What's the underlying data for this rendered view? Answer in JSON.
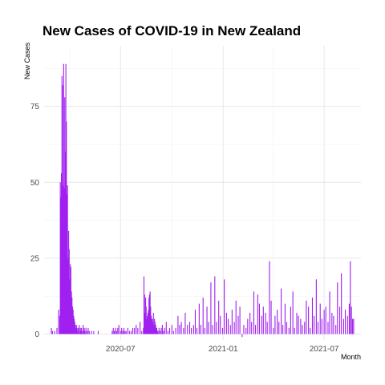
{
  "chart_data": {
    "type": "bar",
    "title": "New Cases of COVID-19 in New Zealand",
    "xlabel": "Month",
    "ylabel": "New Cases",
    "x_ticks": [
      "2020-07",
      "2021-01",
      "2021-07"
    ],
    "y_ticks": [
      0,
      25,
      50,
      75
    ],
    "xlim": [
      "2020-02-15",
      "2021-09-05"
    ],
    "ylim": [
      -2,
      95
    ],
    "grid": true,
    "bar_color": "#a020f0",
    "series": [
      {
        "x": [
          "2020-02-28",
          "2020-03-01",
          "2020-03-05",
          "2020-03-09",
          "2020-03-12",
          "2020-03-14",
          "2020-03-15",
          "2020-03-16",
          "2020-03-17",
          "2020-03-18",
          "2020-03-19",
          "2020-03-20",
          "2020-03-21",
          "2020-03-22",
          "2020-03-23",
          "2020-03-24",
          "2020-03-25",
          "2020-03-26",
          "2020-03-27",
          "2020-03-28",
          "2020-03-29",
          "2020-03-30",
          "2020-03-31",
          "2020-04-01",
          "2020-04-02",
          "2020-04-03",
          "2020-04-04",
          "2020-04-05",
          "2020-04-06",
          "2020-04-07",
          "2020-04-08",
          "2020-04-09",
          "2020-04-10",
          "2020-04-11",
          "2020-04-12",
          "2020-04-13",
          "2020-04-14",
          "2020-04-15",
          "2020-04-16",
          "2020-04-17",
          "2020-04-18",
          "2020-04-19",
          "2020-04-20",
          "2020-04-21",
          "2020-04-22",
          "2020-04-23",
          "2020-04-24",
          "2020-04-25",
          "2020-04-26",
          "2020-04-27",
          "2020-04-28",
          "2020-04-29",
          "2020-04-30",
          "2020-05-02",
          "2020-05-04",
          "2020-05-06",
          "2020-05-08",
          "2020-05-10",
          "2020-05-14",
          "2020-05-22",
          "2020-06-16",
          "2020-06-18",
          "2020-06-20",
          "2020-06-22",
          "2020-06-24",
          "2020-06-26",
          "2020-06-28",
          "2020-07-01",
          "2020-07-03",
          "2020-07-05",
          "2020-07-07",
          "2020-07-09",
          "2020-07-11",
          "2020-07-14",
          "2020-07-17",
          "2020-07-20",
          "2020-07-23",
          "2020-07-26",
          "2020-07-29",
          "2020-08-01",
          "2020-08-05",
          "2020-08-08",
          "2020-08-11",
          "2020-08-12",
          "2020-08-13",
          "2020-08-14",
          "2020-08-15",
          "2020-08-16",
          "2020-08-17",
          "2020-08-18",
          "2020-08-19",
          "2020-08-20",
          "2020-08-21",
          "2020-08-22",
          "2020-08-23",
          "2020-08-24",
          "2020-08-25",
          "2020-08-26",
          "2020-08-27",
          "2020-08-28",
          "2020-08-29",
          "2020-08-30",
          "2020-08-31",
          "2020-09-01",
          "2020-09-02",
          "2020-09-03",
          "2020-09-04",
          "2020-09-05",
          "2020-09-06",
          "2020-09-08",
          "2020-09-10",
          "2020-09-12",
          "2020-09-14",
          "2020-09-16",
          "2020-09-18",
          "2020-09-21",
          "2020-09-24",
          "2020-09-27",
          "2020-10-01",
          "2020-10-04",
          "2020-10-08",
          "2020-10-12",
          "2020-10-15",
          "2020-10-18",
          "2020-10-22",
          "2020-10-25",
          "2020-10-29",
          "2020-11-02",
          "2020-11-05",
          "2020-11-09",
          "2020-11-12",
          "2020-11-15",
          "2020-11-19",
          "2020-11-22",
          "2020-11-26",
          "2020-11-29",
          "2020-12-03",
          "2020-12-06",
          "2020-12-10",
          "2020-12-13",
          "2020-12-17",
          "2020-12-20",
          "2020-12-24",
          "2020-12-27",
          "2020-12-31",
          "2021-01-03",
          "2021-01-07",
          "2021-01-10",
          "2021-01-14",
          "2021-01-17",
          "2021-01-21",
          "2021-01-24",
          "2021-01-28",
          "2021-01-31",
          "2021-02-04",
          "2021-02-07",
          "2021-02-11",
          "2021-02-14",
          "2021-02-18",
          "2021-02-21",
          "2021-02-25",
          "2021-02-28",
          "2021-03-04",
          "2021-03-07",
          "2021-03-11",
          "2021-03-14",
          "2021-03-18",
          "2021-03-21",
          "2021-03-25",
          "2021-03-28",
          "2021-04-01",
          "2021-04-04",
          "2021-04-08",
          "2021-04-11",
          "2021-04-15",
          "2021-04-18",
          "2021-04-22",
          "2021-04-25",
          "2021-04-29",
          "2021-05-02",
          "2021-05-06",
          "2021-05-09",
          "2021-05-13",
          "2021-05-16",
          "2021-05-20",
          "2021-05-23",
          "2021-05-27",
          "2021-05-30",
          "2021-06-03",
          "2021-06-06",
          "2021-06-10",
          "2021-06-13",
          "2021-06-17",
          "2021-06-20",
          "2021-06-24",
          "2021-06-27",
          "2021-07-01",
          "2021-07-04",
          "2021-07-08",
          "2021-07-11",
          "2021-07-15",
          "2021-07-18",
          "2021-07-22",
          "2021-07-25",
          "2021-07-29",
          "2021-08-01",
          "2021-08-05",
          "2021-08-08",
          "2021-08-12",
          "2021-08-15",
          "2021-08-17",
          "2021-08-19",
          "2021-08-21",
          "2021-08-23"
        ],
        "values": [
          2,
          1,
          1,
          2,
          8,
          6,
          50,
          45,
          53,
          85,
          82,
          49,
          89,
          48,
          78,
          60,
          89,
          70,
          46,
          49,
          25,
          34,
          28,
          18,
          23,
          22,
          14,
          12,
          9,
          8,
          6,
          5,
          4,
          3,
          2,
          3,
          2,
          1,
          2,
          0,
          3,
          1,
          2,
          1,
          2,
          0,
          1,
          3,
          1,
          2,
          1,
          0,
          2,
          1,
          2,
          1,
          0,
          1,
          1,
          1,
          1,
          2,
          1,
          2,
          1,
          2,
          3,
          1,
          2,
          1,
          2,
          1,
          1,
          2,
          1,
          1,
          2,
          2,
          3,
          2,
          4,
          1,
          2,
          19,
          13,
          7,
          12,
          9,
          5,
          6,
          7,
          8,
          12,
          13,
          14,
          9,
          6,
          5,
          5,
          4,
          7,
          3,
          5,
          4,
          3,
          2,
          2,
          1,
          1,
          2,
          1,
          2,
          3,
          1,
          2,
          4,
          1,
          2,
          3,
          1,
          2,
          6,
          3,
          4,
          2,
          7,
          3,
          4,
          2,
          3,
          8,
          2,
          10,
          3,
          12,
          2,
          9,
          4,
          17,
          3,
          19,
          4,
          11,
          6,
          2,
          18,
          7,
          5,
          3,
          8,
          4,
          11,
          6,
          9,
          -1,
          3,
          2,
          5,
          7,
          4,
          14,
          3,
          13,
          10,
          6,
          9,
          7,
          4,
          24,
          11,
          2,
          6,
          8,
          4,
          15,
          3,
          10,
          4,
          2,
          9,
          14,
          2,
          7,
          6,
          5,
          3,
          4,
          11,
          9,
          2,
          12,
          6,
          18,
          4,
          10,
          5,
          8,
          9,
          4,
          14,
          7,
          6,
          3,
          17,
          9,
          20,
          5,
          8,
          6,
          10,
          24,
          9,
          5,
          5
        ]
      }
    ]
  }
}
